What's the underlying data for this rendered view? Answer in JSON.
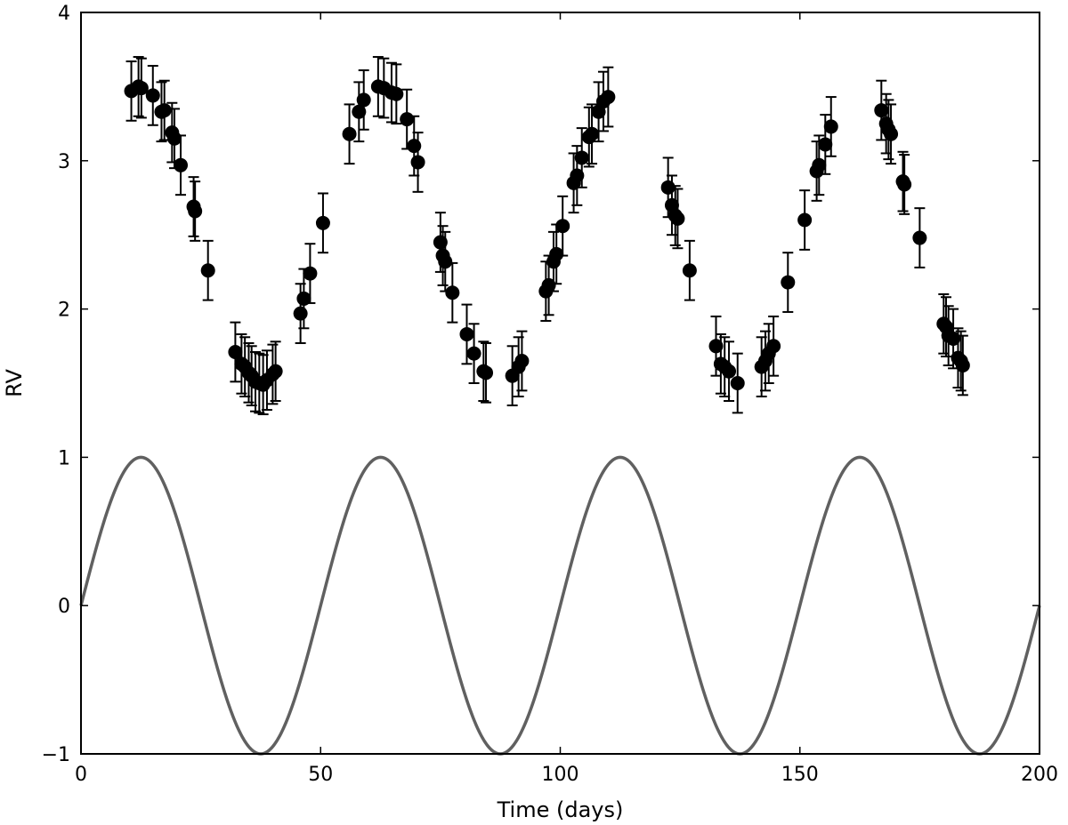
{
  "chart_data": {
    "type": "scatter",
    "title": "",
    "xlabel": "Time (days)",
    "ylabel": "RV",
    "xlim": [
      0,
      200
    ],
    "ylim": [
      -1,
      4
    ],
    "xticks": [
      0,
      50,
      100,
      150,
      200
    ],
    "yticks": [
      -1,
      0,
      1,
      2,
      3,
      4
    ],
    "xtick_labels": [
      "0",
      "50",
      "100",
      "150",
      "200"
    ],
    "ytick_labels": [
      "−1",
      "0",
      "1",
      "2",
      "3",
      "4"
    ],
    "grid": false,
    "colors": {
      "points": "#000000",
      "curve": "#606060",
      "axes": "#000000"
    },
    "series": [
      {
        "type": "scatter",
        "error": 0.2,
        "points": [
          [
            10.5,
            3.47
          ],
          [
            12.0,
            3.5
          ],
          [
            12.6,
            3.49
          ],
          [
            15.0,
            3.44
          ],
          [
            16.8,
            3.33
          ],
          [
            17.4,
            3.34
          ],
          [
            19.0,
            3.19
          ],
          [
            19.5,
            3.15
          ],
          [
            20.8,
            2.97
          ],
          [
            23.5,
            2.69
          ],
          [
            23.8,
            2.66
          ],
          [
            26.5,
            2.26
          ],
          [
            32.2,
            1.71
          ],
          [
            33.5,
            1.63
          ],
          [
            34.2,
            1.61
          ],
          [
            35.0,
            1.57
          ],
          [
            35.6,
            1.55
          ],
          [
            36.4,
            1.51
          ],
          [
            37.2,
            1.5
          ],
          [
            38.0,
            1.49
          ],
          [
            38.8,
            1.52
          ],
          [
            40.0,
            1.56
          ],
          [
            40.6,
            1.58
          ],
          [
            45.8,
            1.97
          ],
          [
            46.5,
            2.07
          ],
          [
            47.8,
            2.24
          ],
          [
            50.5,
            2.58
          ],
          [
            56.0,
            3.18
          ],
          [
            58.0,
            3.33
          ],
          [
            59.0,
            3.41
          ],
          [
            62.0,
            3.5
          ],
          [
            63.2,
            3.49
          ],
          [
            64.8,
            3.46
          ],
          [
            65.8,
            3.45
          ],
          [
            68.0,
            3.28
          ],
          [
            69.5,
            3.1
          ],
          [
            70.3,
            2.99
          ],
          [
            75.0,
            2.45
          ],
          [
            75.5,
            2.36
          ],
          [
            76.0,
            2.32
          ],
          [
            77.5,
            2.11
          ],
          [
            80.5,
            1.83
          ],
          [
            82.0,
            1.7
          ],
          [
            84.0,
            1.58
          ],
          [
            84.5,
            1.57
          ],
          [
            90.0,
            1.55
          ],
          [
            91.3,
            1.61
          ],
          [
            92.0,
            1.65
          ],
          [
            97.0,
            2.12
          ],
          [
            97.6,
            2.16
          ],
          [
            98.6,
            2.32
          ],
          [
            99.2,
            2.37
          ],
          [
            100.5,
            2.56
          ],
          [
            102.8,
            2.85
          ],
          [
            103.5,
            2.9
          ],
          [
            104.5,
            3.02
          ],
          [
            106.0,
            3.16
          ],
          [
            106.6,
            3.18
          ],
          [
            108.0,
            3.33
          ],
          [
            109.0,
            3.4
          ],
          [
            110.0,
            3.43
          ],
          [
            122.5,
            2.82
          ],
          [
            123.3,
            2.7
          ],
          [
            124.0,
            2.63
          ],
          [
            124.5,
            2.61
          ],
          [
            127.0,
            2.26
          ],
          [
            132.5,
            1.75
          ],
          [
            133.5,
            1.63
          ],
          [
            134.3,
            1.61
          ],
          [
            135.2,
            1.58
          ],
          [
            137.0,
            1.5
          ],
          [
            142.0,
            1.61
          ],
          [
            142.8,
            1.65
          ],
          [
            143.5,
            1.7
          ],
          [
            144.5,
            1.75
          ],
          [
            147.5,
            2.18
          ],
          [
            151.0,
            2.6
          ],
          [
            153.5,
            2.93
          ],
          [
            154.0,
            2.97
          ],
          [
            155.3,
            3.11
          ],
          [
            156.5,
            3.23
          ],
          [
            167.0,
            3.34
          ],
          [
            168.0,
            3.25
          ],
          [
            168.5,
            3.21
          ],
          [
            169.0,
            3.18
          ],
          [
            171.5,
            2.86
          ],
          [
            171.8,
            2.84
          ],
          [
            175.0,
            2.48
          ],
          [
            180.0,
            1.9
          ],
          [
            180.5,
            1.88
          ],
          [
            181.0,
            1.82
          ],
          [
            182.0,
            1.8
          ],
          [
            183.0,
            1.67
          ],
          [
            183.6,
            1.65
          ],
          [
            184.0,
            1.62
          ]
        ]
      },
      {
        "type": "line",
        "function": "sine",
        "amplitude": 1,
        "period": 50,
        "phase": 0,
        "x_range": [
          0,
          200
        ]
      }
    ]
  }
}
